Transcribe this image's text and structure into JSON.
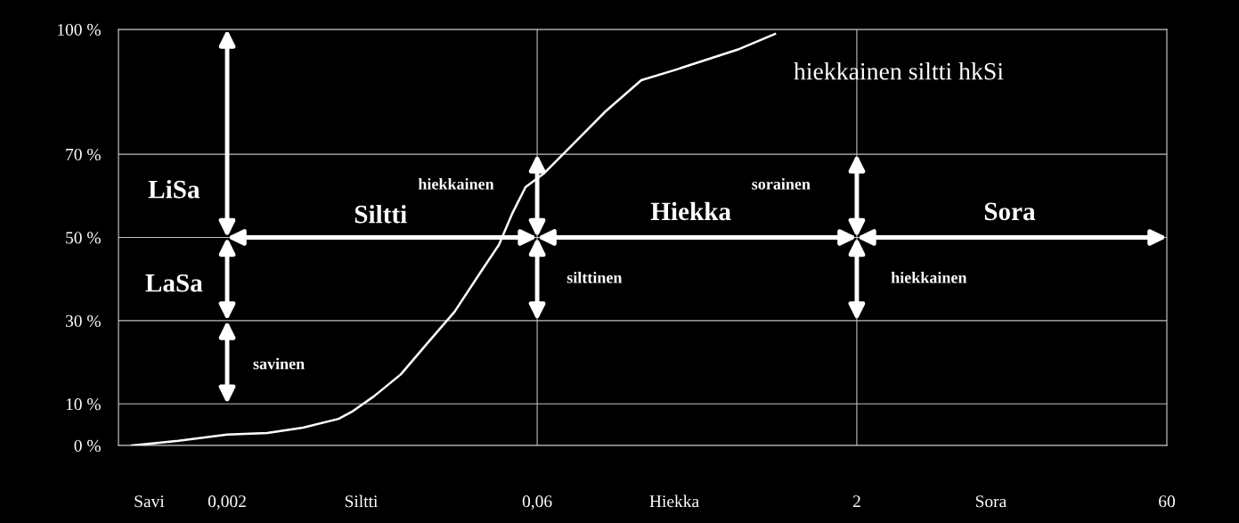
{
  "chart_data": {
    "type": "line",
    "x": [
      0.000703,
      0.00117,
      0.002,
      0.0031,
      0.00459,
      0.00679,
      0.00785,
      0.01,
      0.01345,
      0.018,
      0.0242,
      0.0324,
      0.0394,
      0.0456,
      0.0528,
      0.0643,
      0.0861,
      0.127,
      0.188,
      0.278,
      0.373,
      0.552,
      0.815
    ],
    "series": [
      {
        "name": "hiekkainen siltti hkSi",
        "color": "#ffffff",
        "values": [
          0,
          1.1,
          2.6,
          3.0,
          4.3,
          6.4,
          8.1,
          11.8,
          17.1,
          24.6,
          32.1,
          41.8,
          48.2,
          55.7,
          62.1,
          65.3,
          71.7,
          80.3,
          87.8,
          90.4,
          92.5,
          95.3,
          98.9
        ]
      }
    ],
    "log": "x",
    "xlim": [
      0.000607,
      60
    ],
    "xticks": [
      {
        "value": 0.00085,
        "label": "Savi"
      },
      {
        "value": 0.002,
        "label": "0,002"
      },
      {
        "value": 0.0087,
        "label": "Siltti"
      },
      {
        "value": 0.06,
        "label": "0,06"
      },
      {
        "value": 0.27,
        "label": "Hiekka"
      },
      {
        "value": 2,
        "label": "2"
      },
      {
        "value": 8.7,
        "label": "Sora"
      },
      {
        "value": 60,
        "label": "60"
      }
    ],
    "ylim": [
      0,
      100
    ],
    "yticks": [
      {
        "value": 0,
        "label": "0 %"
      },
      {
        "value": 10,
        "label": "10 %"
      },
      {
        "value": 30,
        "label": "30 %"
      },
      {
        "value": 50,
        "label": "50 %"
      },
      {
        "value": 70,
        "label": "70 %"
      },
      {
        "value": 100,
        "label": "100 %"
      }
    ],
    "grid": "y",
    "legend": false,
    "marker": "none",
    "line_style": "solid",
    "ref_lines": [
      {
        "axis": "x",
        "value": 0.06,
        "color": "#c0c0c0"
      },
      {
        "axis": "x",
        "value": 2,
        "color": "#c0c0c0"
      }
    ],
    "annotations": [
      "LiSa",
      "LaSa",
      "savinen",
      "Siltti",
      "Hiekka",
      "Sora",
      "hiekkainen",
      "silttinen",
      "sorainen",
      "hiekkainen"
    ]
  }
}
